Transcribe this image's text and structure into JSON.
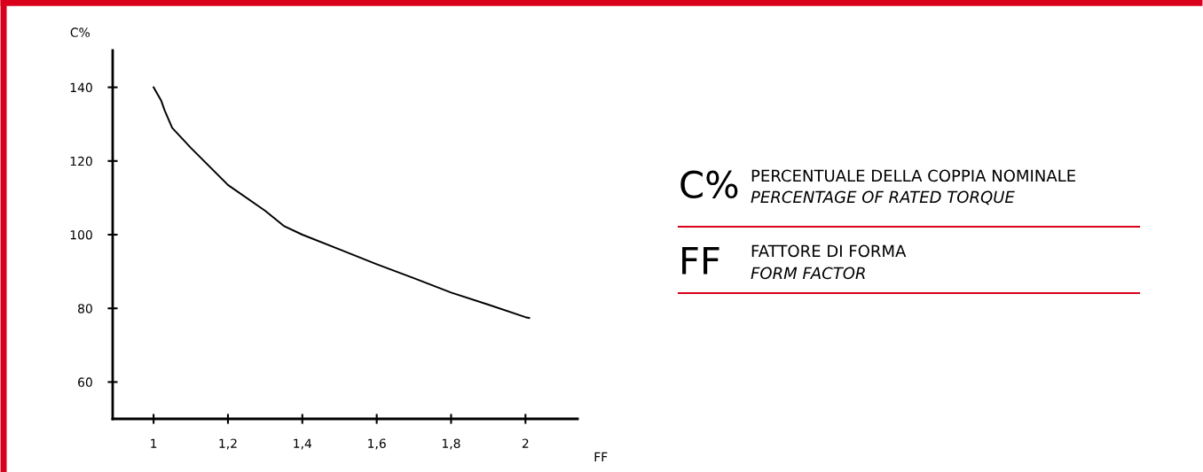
{
  "chart_data": {
    "type": "line",
    "xlabel": "FF",
    "ylabel": "C%",
    "x": [
      1.0,
      1.02,
      1.03,
      1.05,
      1.1,
      1.2,
      1.3,
      1.35,
      1.4,
      1.5,
      1.6,
      1.7,
      1.8,
      1.9,
      2.0,
      2.01
    ],
    "series": [
      {
        "color": "#000000",
        "values": [
          140,
          136.5,
          133.7,
          129,
          123.6,
          113.5,
          106.5,
          102.4,
          100,
          96,
          92,
          88.2,
          84.3,
          81,
          77.6,
          77.4
        ]
      }
    ],
    "xlim": [
      0.89,
      2.14
    ],
    "ylim": [
      50,
      150
    ],
    "xticks": [
      1,
      {
        "value": 1.2,
        "label": "1,2"
      },
      {
        "value": 1.4,
        "label": "1,4"
      },
      {
        "value": 1.6,
        "label": "1,6"
      },
      {
        "value": 1.8,
        "label": "1,8"
      },
      2
    ],
    "yticks": [
      60,
      80,
      100,
      120,
      140
    ],
    "grid": false,
    "legend": false,
    "marker": "none",
    "line_style": "solid",
    "annotations": [
      "C%",
      "PERCENTUALE DELLA COPPIA NOMINALE",
      "PERCENTAGE OF RATED TORQUE",
      "FF",
      "FATTORE DI FORMA",
      "FORM FACTOR"
    ]
  }
}
